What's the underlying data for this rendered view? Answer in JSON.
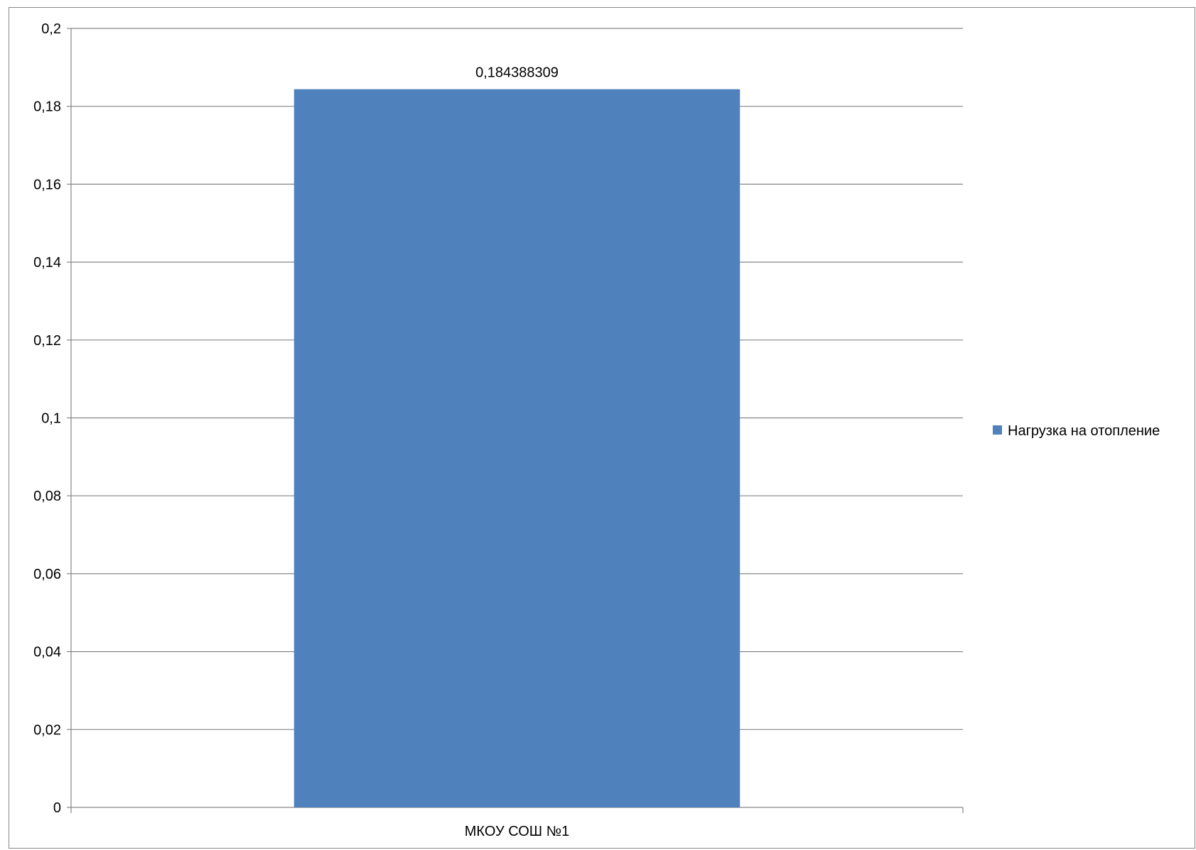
{
  "chart_data": {
    "type": "bar",
    "title": "",
    "xlabel": "",
    "ylabel": "",
    "categories": [
      "МКОУ СОШ №1"
    ],
    "series": [
      {
        "name": "Нагрузка на отопление",
        "values": [
          0.184388309
        ],
        "color": "#4f81bd"
      }
    ],
    "data_labels": [
      "0,184388309"
    ],
    "ylim": [
      0,
      0.2
    ],
    "yticks": [
      0,
      0.02,
      0.04,
      0.06,
      0.08,
      0.1,
      0.12,
      0.14,
      0.16,
      0.18,
      0.2
    ],
    "ytick_labels": [
      "0",
      "0,02",
      "0,04",
      "0,06",
      "0,08",
      "0,1",
      "0,12",
      "0,14",
      "0,16",
      "0,18",
      "0,2"
    ],
    "grid": true,
    "legend": "right"
  }
}
